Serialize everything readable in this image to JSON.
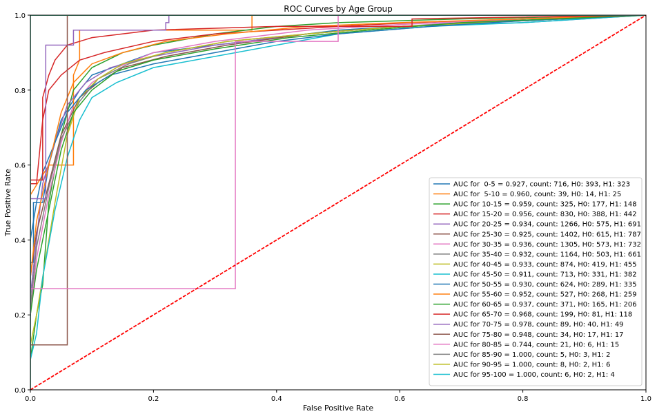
{
  "chart_data": {
    "type": "line",
    "title": "ROC Curves by Age Group",
    "xlabel": "False Positive Rate",
    "ylabel": "True Positive Rate",
    "xlim": [
      0,
      1
    ],
    "ylim": [
      0,
      1
    ],
    "xticks": [
      "0.0",
      "0.2",
      "0.4",
      "0.6",
      "0.8",
      "1.0"
    ],
    "yticks": [
      "0.0",
      "0.2",
      "0.4",
      "0.6",
      "0.8",
      "1.0"
    ],
    "grid": false,
    "legend_position": "lower-right",
    "diagonal": {
      "color": "#ff0000",
      "style": "dashed",
      "points": [
        [
          0,
          0
        ],
        [
          1,
          1
        ]
      ]
    },
    "series": [
      {
        "name": "AUC for  0-5 = 0.927, count: 716, H0: 393, H1: 323",
        "color": "#1f77b4",
        "points": [
          [
            0,
            0
          ],
          [
            0,
            0.34
          ],
          [
            0.005,
            0.34
          ],
          [
            0.005,
            0.5
          ],
          [
            0.02,
            0.5
          ],
          [
            0.03,
            0.6
          ],
          [
            0.05,
            0.72
          ],
          [
            0.08,
            0.8
          ],
          [
            0.1,
            0.84
          ],
          [
            0.15,
            0.87
          ],
          [
            0.2,
            0.9
          ],
          [
            0.3,
            0.92
          ],
          [
            0.4,
            0.94
          ],
          [
            0.5,
            0.96
          ],
          [
            0.6,
            0.97
          ],
          [
            0.8,
            0.98
          ],
          [
            0.9,
            0.99
          ],
          [
            1,
            1
          ]
        ]
      },
      {
        "name": "AUC for  5-10 = 0.960, count: 39, H0: 14, H1: 25",
        "color": "#ff7f0e",
        "points": [
          [
            0,
            0
          ],
          [
            0,
            0.52
          ],
          [
            0.03,
            0.6
          ],
          [
            0.07,
            0.6
          ],
          [
            0.07,
            0.84
          ],
          [
            0.08,
            0.88
          ],
          [
            0.08,
            0.96
          ],
          [
            0.36,
            0.96
          ],
          [
            0.36,
            1
          ],
          [
            1,
            1
          ]
        ]
      },
      {
        "name": "AUC for 10-15 = 0.959, count: 325, H0: 177, H1: 148",
        "color": "#2ca02c",
        "points": [
          [
            0,
            0
          ],
          [
            0,
            0.08
          ],
          [
            0.01,
            0.2
          ],
          [
            0.02,
            0.28
          ],
          [
            0.03,
            0.5
          ],
          [
            0.05,
            0.68
          ],
          [
            0.07,
            0.8
          ],
          [
            0.1,
            0.86
          ],
          [
            0.15,
            0.9
          ],
          [
            0.2,
            0.92
          ],
          [
            0.3,
            0.95
          ],
          [
            0.4,
            0.97
          ],
          [
            0.5,
            0.98
          ],
          [
            0.7,
            0.99
          ],
          [
            1,
            1
          ]
        ]
      },
      {
        "name": "AUC for 15-20 = 0.956, count: 830, H0: 388, H1: 442",
        "color": "#d62728",
        "points": [
          [
            0,
            0
          ],
          [
            0,
            0.55
          ],
          [
            0.01,
            0.55
          ],
          [
            0.02,
            0.72
          ],
          [
            0.03,
            0.8
          ],
          [
            0.05,
            0.84
          ],
          [
            0.08,
            0.88
          ],
          [
            0.12,
            0.9
          ],
          [
            0.2,
            0.93
          ],
          [
            0.3,
            0.95
          ],
          [
            0.5,
            0.97
          ],
          [
            0.62,
            0.98
          ],
          [
            0.8,
            0.99
          ],
          [
            1,
            1
          ]
        ]
      },
      {
        "name": "AUC for 20-25 = 0.934, count: 1266, H0: 575, H1: 691",
        "color": "#9467bd",
        "points": [
          [
            0,
            0
          ],
          [
            0,
            0.25
          ],
          [
            0.01,
            0.4
          ],
          [
            0.02,
            0.55
          ],
          [
            0.04,
            0.66
          ],
          [
            0.06,
            0.76
          ],
          [
            0.09,
            0.82
          ],
          [
            0.13,
            0.86
          ],
          [
            0.2,
            0.89
          ],
          [
            0.3,
            0.92
          ],
          [
            0.45,
            0.95
          ],
          [
            0.6,
            0.97
          ],
          [
            0.8,
            0.99
          ],
          [
            1,
            1
          ]
        ]
      },
      {
        "name": "AUC for 25-30 = 0.925, count: 1402, H0: 615, H1: 787",
        "color": "#8c564b",
        "points": [
          [
            0,
            0
          ],
          [
            0,
            0.3
          ],
          [
            0.01,
            0.42
          ],
          [
            0.03,
            0.55
          ],
          [
            0.05,
            0.68
          ],
          [
            0.08,
            0.78
          ],
          [
            0.11,
            0.82
          ],
          [
            0.15,
            0.86
          ],
          [
            0.22,
            0.89
          ],
          [
            0.32,
            0.92
          ],
          [
            0.45,
            0.95
          ],
          [
            0.6,
            0.97
          ],
          [
            0.8,
            0.985
          ],
          [
            1,
            1
          ]
        ]
      },
      {
        "name": "AUC for 30-35 = 0.936, count: 1305, H0: 573, H1: 732",
        "color": "#e377c2",
        "points": [
          [
            0,
            0
          ],
          [
            0,
            0.2
          ],
          [
            0.01,
            0.35
          ],
          [
            0.03,
            0.52
          ],
          [
            0.05,
            0.66
          ],
          [
            0.07,
            0.76
          ],
          [
            0.1,
            0.82
          ],
          [
            0.14,
            0.86
          ],
          [
            0.2,
            0.9
          ],
          [
            0.3,
            0.93
          ],
          [
            0.45,
            0.96
          ],
          [
            0.6,
            0.975
          ],
          [
            0.8,
            0.99
          ],
          [
            1,
            1
          ]
        ]
      },
      {
        "name": "AUC for 35-40 = 0.932, count: 1164, H0: 503, H1: 661",
        "color": "#7f7f7f",
        "points": [
          [
            0,
            0
          ],
          [
            0,
            0.22
          ],
          [
            0.01,
            0.38
          ],
          [
            0.03,
            0.54
          ],
          [
            0.05,
            0.67
          ],
          [
            0.08,
            0.77
          ],
          [
            0.11,
            0.83
          ],
          [
            0.16,
            0.87
          ],
          [
            0.22,
            0.9
          ],
          [
            0.32,
            0.93
          ],
          [
            0.45,
            0.95
          ],
          [
            0.6,
            0.97
          ],
          [
            0.8,
            0.985
          ],
          [
            1,
            1
          ]
        ]
      },
      {
        "name": "AUC for 40-45 = 0.933, count: 874, H0: 419, H1: 455",
        "color": "#bcbd22",
        "points": [
          [
            0,
            0
          ],
          [
            0,
            0.12
          ],
          [
            0.01,
            0.2
          ],
          [
            0.02,
            0.3
          ],
          [
            0.04,
            0.5
          ],
          [
            0.06,
            0.68
          ],
          [
            0.08,
            0.78
          ],
          [
            0.11,
            0.83
          ],
          [
            0.15,
            0.87
          ],
          [
            0.22,
            0.9
          ],
          [
            0.32,
            0.93
          ],
          [
            0.45,
            0.95
          ],
          [
            0.6,
            0.97
          ],
          [
            0.8,
            0.985
          ],
          [
            1,
            1
          ]
        ]
      },
      {
        "name": "AUC for 45-50 = 0.911, count: 713, H0: 331, H1: 382",
        "color": "#17becf",
        "points": [
          [
            0,
            0
          ],
          [
            0,
            0.08
          ],
          [
            0.01,
            0.15
          ],
          [
            0.02,
            0.3
          ],
          [
            0.04,
            0.48
          ],
          [
            0.06,
            0.62
          ],
          [
            0.08,
            0.72
          ],
          [
            0.1,
            0.78
          ],
          [
            0.14,
            0.82
          ],
          [
            0.2,
            0.86
          ],
          [
            0.3,
            0.89
          ],
          [
            0.4,
            0.92
          ],
          [
            0.5,
            0.95
          ],
          [
            0.65,
            0.97
          ],
          [
            0.8,
            0.98
          ],
          [
            1,
            1
          ]
        ]
      },
      {
        "name": "AUC for 50-55 = 0.930, count: 624, H0: 289, H1: 335",
        "color": "#1f77b4",
        "points": [
          [
            0,
            0
          ],
          [
            0,
            0.4
          ],
          [
            0.01,
            0.5
          ],
          [
            0.02,
            0.58
          ],
          [
            0.04,
            0.66
          ],
          [
            0.06,
            0.74
          ],
          [
            0.09,
            0.8
          ],
          [
            0.13,
            0.84
          ],
          [
            0.2,
            0.87
          ],
          [
            0.3,
            0.9
          ],
          [
            0.4,
            0.93
          ],
          [
            0.5,
            0.95
          ],
          [
            0.65,
            0.97
          ],
          [
            0.8,
            0.985
          ],
          [
            1,
            1
          ]
        ]
      },
      {
        "name": "AUC for 55-60 = 0.952, count: 527, H0: 268, H1: 259",
        "color": "#ff7f0e",
        "points": [
          [
            0,
            0
          ],
          [
            0,
            0.3
          ],
          [
            0.01,
            0.45
          ],
          [
            0.03,
            0.6
          ],
          [
            0.05,
            0.74
          ],
          [
            0.07,
            0.82
          ],
          [
            0.1,
            0.87
          ],
          [
            0.15,
            0.9
          ],
          [
            0.22,
            0.93
          ],
          [
            0.32,
            0.95
          ],
          [
            0.45,
            0.97
          ],
          [
            0.6,
            0.98
          ],
          [
            0.8,
            0.99
          ],
          [
            1,
            1
          ]
        ]
      },
      {
        "name": "AUC for 60-65 = 0.937, count: 371, H0: 165, H1: 206",
        "color": "#2ca02c",
        "points": [
          [
            0,
            0
          ],
          [
            0,
            0.2
          ],
          [
            0.01,
            0.32
          ],
          [
            0.03,
            0.48
          ],
          [
            0.05,
            0.64
          ],
          [
            0.07,
            0.74
          ],
          [
            0.1,
            0.8
          ],
          [
            0.14,
            0.85
          ],
          [
            0.2,
            0.88
          ],
          [
            0.3,
            0.91
          ],
          [
            0.42,
            0.94
          ],
          [
            0.55,
            0.96
          ],
          [
            0.7,
            0.98
          ],
          [
            0.85,
            0.99
          ],
          [
            1,
            1
          ]
        ]
      },
      {
        "name": "AUC for 65-70 = 0.968, count: 199, H0: 81, H1: 118",
        "color": "#d62728",
        "points": [
          [
            0,
            0
          ],
          [
            0,
            0.56
          ],
          [
            0.02,
            0.56
          ],
          [
            0.02,
            0.78
          ],
          [
            0.03,
            0.84
          ],
          [
            0.04,
            0.88
          ],
          [
            0.06,
            0.92
          ],
          [
            0.1,
            0.94
          ],
          [
            0.2,
            0.96
          ],
          [
            0.4,
            0.97
          ],
          [
            0.62,
            0.97
          ],
          [
            0.62,
            0.99
          ],
          [
            0.8,
            0.995
          ],
          [
            1,
            1
          ]
        ]
      },
      {
        "name": "AUC for 70-75 = 0.978, count: 89, H0: 40, H1: 49",
        "color": "#9467bd",
        "points": [
          [
            0,
            0
          ],
          [
            0,
            0.51
          ],
          [
            0.025,
            0.51
          ],
          [
            0.025,
            0.92
          ],
          [
            0.07,
            0.92
          ],
          [
            0.07,
            0.96
          ],
          [
            0.22,
            0.96
          ],
          [
            0.22,
            0.98
          ],
          [
            0.225,
            0.98
          ],
          [
            0.225,
            1
          ],
          [
            1,
            1
          ]
        ]
      },
      {
        "name": "AUC for 75-80 = 0.948, count: 34, H0: 17, H1: 17",
        "color": "#8c564b",
        "points": [
          [
            0,
            0
          ],
          [
            0,
            0.12
          ],
          [
            0.06,
            0.12
          ],
          [
            0.06,
            0.94
          ],
          [
            0.06,
            1
          ],
          [
            1,
            1
          ]
        ]
      },
      {
        "name": "AUC for 80-85 = 0.744, count: 21, H0: 6, H1: 15",
        "color": "#e377c2",
        "points": [
          [
            0,
            0
          ],
          [
            0,
            0.27
          ],
          [
            0.333,
            0.27
          ],
          [
            0.333,
            0.93
          ],
          [
            0.5,
            0.93
          ],
          [
            0.5,
            1
          ],
          [
            1,
            1
          ]
        ]
      },
      {
        "name": "AUC for 85-90 = 1.000, count: 5, H0: 3, H1: 2",
        "color": "#7f7f7f",
        "points": [
          [
            0,
            0
          ],
          [
            0,
            1
          ],
          [
            1,
            1
          ]
        ]
      },
      {
        "name": "AUC for 90-95 = 1.000, count: 8, H0: 2, H1: 6",
        "color": "#bcbd22",
        "points": [
          [
            0,
            0
          ],
          [
            0,
            1
          ],
          [
            1,
            1
          ]
        ]
      },
      {
        "name": "AUC for 95-100 = 1.000, count: 6, H0: 2, H1: 4",
        "color": "#17becf",
        "points": [
          [
            0,
            0
          ],
          [
            0,
            1
          ],
          [
            1,
            1
          ]
        ]
      }
    ]
  }
}
